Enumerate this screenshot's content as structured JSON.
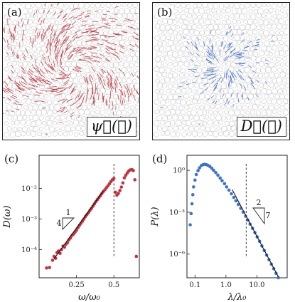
{
  "panels": {
    "a": {
      "label": "(a)",
      "field_label": "ψ⃗(𝓜)",
      "color": "#b5303a"
    },
    "b": {
      "label": "(b)",
      "field_label": "D⃗(𝓐)",
      "color": "#3a64c4"
    }
  },
  "chart_data": [
    {
      "type": "scatter",
      "panel": "(c)",
      "xlabel": "ω/ω₀",
      "ylabel": "D(ω)",
      "yscale": "log",
      "xlim": [
        0.0,
        0.67
      ],
      "ylim": [
        1.2e-05,
        0.12
      ],
      "xticks": [
        0.25,
        0.5
      ],
      "xtick_labels": [
        "0.25",
        "0.5"
      ],
      "yticks": [
        0.0001,
        0.001,
        0.01
      ],
      "ytick_labels": [
        "10⁻⁴",
        "10⁻³",
        "10⁻²"
      ],
      "color": "#c0343f",
      "points": [
        [
          0.05,
          2.5e-05
        ],
        [
          0.07,
          2.6e-05
        ],
        [
          0.09,
          4.5e-05
        ],
        [
          0.1,
          6e-05
        ],
        [
          0.11,
          5.2e-05
        ],
        [
          0.12,
          8e-05
        ],
        [
          0.13,
          9e-05
        ],
        [
          0.14,
          7.5e-05
        ],
        [
          0.15,
          0.0001
        ],
        [
          0.16,
          0.00013
        ],
        [
          0.17,
          0.00012
        ],
        [
          0.18,
          0.00015
        ],
        [
          0.19,
          0.00017
        ],
        [
          0.2,
          0.00021
        ],
        [
          0.21,
          0.00024
        ],
        [
          0.22,
          0.00029
        ],
        [
          0.23,
          0.00032
        ],
        [
          0.24,
          0.00037
        ],
        [
          0.25,
          0.00043
        ],
        [
          0.26,
          0.00052
        ],
        [
          0.27,
          0.00062
        ],
        [
          0.28,
          0.00072
        ],
        [
          0.29,
          0.00085
        ],
        [
          0.3,
          0.001
        ],
        [
          0.31,
          0.0012
        ],
        [
          0.32,
          0.0014
        ],
        [
          0.33,
          0.0016
        ],
        [
          0.34,
          0.0019
        ],
        [
          0.35,
          0.0022
        ],
        [
          0.36,
          0.0026
        ],
        [
          0.37,
          0.0031
        ],
        [
          0.38,
          0.0037
        ],
        [
          0.39,
          0.0043
        ],
        [
          0.4,
          0.005
        ],
        [
          0.41,
          0.0058
        ],
        [
          0.42,
          0.0068
        ],
        [
          0.43,
          0.0079
        ],
        [
          0.44,
          0.009
        ],
        [
          0.45,
          0.0105
        ],
        [
          0.46,
          0.012
        ],
        [
          0.47,
          0.014
        ],
        [
          0.48,
          0.0165
        ],
        [
          0.49,
          0.019
        ],
        [
          0.5,
          0.021
        ],
        [
          0.51,
          0.0075
        ],
        [
          0.52,
          0.006
        ],
        [
          0.53,
          0.0068
        ],
        [
          0.54,
          0.0085
        ],
        [
          0.55,
          0.011
        ],
        [
          0.56,
          0.015
        ],
        [
          0.57,
          0.022
        ],
        [
          0.58,
          0.027
        ],
        [
          0.59,
          0.032
        ],
        [
          0.6,
          0.037
        ],
        [
          0.61,
          0.04
        ],
        [
          0.62,
          0.041
        ],
        [
          0.63,
          0.038
        ],
        [
          0.64,
          0.019
        ],
        [
          0.65,
          6e-05
        ]
      ],
      "fit_line": [
        [
          0.1,
          5e-05
        ],
        [
          0.43,
          0.0082
        ]
      ],
      "vline_x": 0.5,
      "slope_annotation": {
        "run_label": "1",
        "rise_label": "4"
      }
    },
    {
      "type": "scatter",
      "panel": "(d)",
      "xlabel": "λ/λ₀",
      "ylabel": "P(λ)",
      "xscale": "log",
      "yscale": "log",
      "xlim": [
        0.055,
        95
      ],
      "ylim": [
        2e-08,
        12
      ],
      "xticks": [
        0.1,
        1.0,
        10.0
      ],
      "xtick_labels": [
        "0.1",
        "1.0",
        "10.0"
      ],
      "yticks": [
        1,
        0.001,
        1e-06
      ],
      "ytick_labels": [
        "10⁰",
        "10⁻³",
        "10⁻⁶"
      ],
      "color": "#3f72c7",
      "points": [
        [
          0.07,
          0.000125
        ],
        [
          0.075,
          0.0008
        ],
        [
          0.08,
          0.004
        ],
        [
          0.085,
          0.018
        ],
        [
          0.09,
          0.065
        ],
        [
          0.1,
          0.2
        ],
        [
          0.11,
          0.5
        ],
        [
          0.125,
          0.95
        ],
        [
          0.14,
          1.5
        ],
        [
          0.16,
          2.2
        ],
        [
          0.18,
          2.5
        ],
        [
          0.2,
          2.7
        ],
        [
          0.23,
          2.6
        ],
        [
          0.26,
          2.3
        ],
        [
          0.3,
          1.9
        ],
        [
          0.35,
          1.4
        ],
        [
          0.4,
          1.0
        ],
        [
          0.47,
          0.68
        ],
        [
          0.55,
          0.45
        ],
        [
          0.65,
          0.28
        ],
        [
          0.75,
          0.18
        ],
        [
          0.9,
          0.11
        ],
        [
          1.05,
          0.065
        ],
        [
          1.25,
          0.038
        ],
        [
          1.5,
          0.021
        ],
        [
          1.8,
          0.0115
        ],
        [
          2.1,
          0.0065
        ],
        [
          2.5,
          0.0036
        ],
        [
          3.0,
          0.0019
        ],
        [
          3.6,
          0.001
        ],
        [
          4.3,
          0.00052
        ],
        [
          5.1,
          0.00027
        ],
        [
          6.0,
          0.00014
        ],
        [
          7.2,
          7e-05
        ],
        [
          8.6,
          3.5e-05
        ],
        [
          10.2,
          1.7e-05
        ],
        [
          12.2,
          8.2e-06
        ],
        [
          14.5,
          3.8e-06
        ],
        [
          17.3,
          1.8e-06
        ],
        [
          20.6,
          8.5e-07
        ],
        [
          24.5,
          4e-07
        ],
        [
          29.2,
          1.9e-07
        ],
        [
          34.8,
          9e-08
        ],
        [
          41.4,
          4.2e-08
        ],
        [
          49.3,
          2e-08
        ]
      ],
      "fit_line": [
        [
          1.6,
          0.04
        ],
        [
          50,
          2.2e-08
        ]
      ],
      "vline_x": 4.5,
      "slope_annotation": {
        "run_label": "2",
        "rise_label": "7"
      }
    }
  ]
}
